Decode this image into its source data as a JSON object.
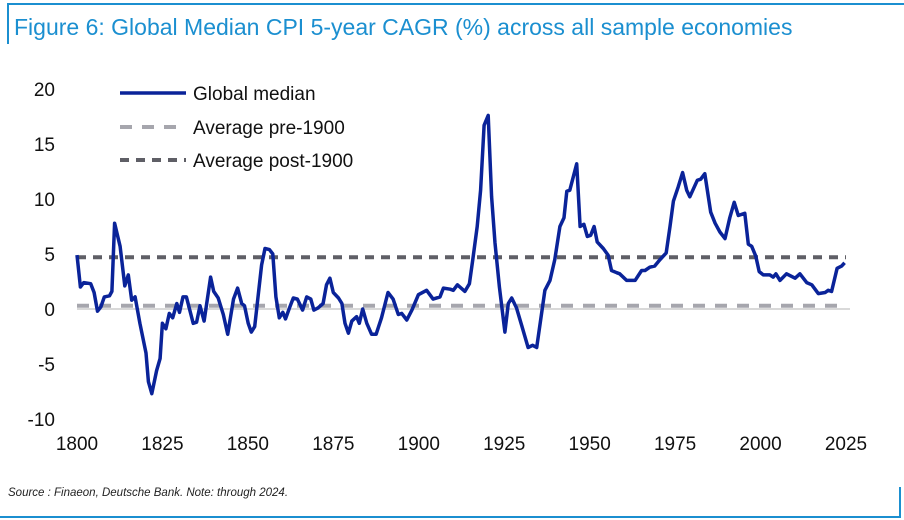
{
  "title": "Figure 6: Global Median CPI 5-year CAGR (%) across all sample economies",
  "source": "Source : Finaeon, Deutsche Bank. Note: through 2024.",
  "colors": {
    "frame": "#1b8fd0",
    "median": "#0a2399",
    "pre1900": "#a6a6ad",
    "post1900": "#5f5f66",
    "zero": "#d9d9d9"
  },
  "chart_data": {
    "type": "line",
    "title": "Figure 6: Global Median CPI 5-year CAGR (%) across all sample economies",
    "xlabel": "",
    "ylabel": "",
    "xlim": [
      1800,
      2025
    ],
    "ylim": [
      -10,
      20
    ],
    "xticks": [
      1800,
      1825,
      1850,
      1875,
      1900,
      1925,
      1950,
      1975,
      2000,
      2025
    ],
    "yticks": [
      20,
      15,
      10,
      5,
      0,
      -5,
      -10
    ],
    "legend_position": "top-left",
    "series": [
      {
        "name": "Global median",
        "style": "solid",
        "x": [
          1800,
          1801,
          1802,
          1804,
          1805,
          1806,
          1807,
          1808,
          1809.5,
          1810.2,
          1811,
          1812.6,
          1814,
          1815,
          1816,
          1817,
          1818.4,
          1820.2,
          1820.9,
          1821.9,
          1823.3,
          1824.3,
          1825,
          1826,
          1827,
          1828,
          1829.2,
          1830,
          1831,
          1832,
          1834,
          1835,
          1836,
          1837.2,
          1839.1,
          1840,
          1841.3,
          1842.8,
          1844.1,
          1845.8,
          1847,
          1848.2,
          1849,
          1850.1,
          1851,
          1852,
          1854,
          1855,
          1856.3,
          1857.3,
          1858.2,
          1859.2,
          1860.2,
          1861,
          1862.3,
          1863.3,
          1864.5,
          1866,
          1867.2,
          1868.4,
          1869.3,
          1870.5,
          1872,
          1873,
          1874,
          1875,
          1876.5,
          1877.5,
          1878.4,
          1879.4,
          1880.4,
          1881.8,
          1882.6,
          1883.6,
          1884.8,
          1886.2,
          1887.5,
          1889.1,
          1891,
          1892.5,
          1894,
          1895,
          1896.5,
          1898,
          1899.9,
          1902.3,
          1904.2,
          1906.2,
          1907.2,
          1909.2,
          1910.1,
          1911.3,
          1913.5,
          1914.8,
          1915.8,
          1917.1,
          1918.1,
          1919.1,
          1920.3,
          1921.3,
          1922.3,
          1923.6,
          1925.2,
          1926.2,
          1927.2,
          1928.6,
          1930.1,
          1932,
          1933.3,
          1934.5,
          1936.9,
          1938.4,
          1939.8,
          1941.3,
          1942.5,
          1943.3,
          1944.2,
          1946.2,
          1947.2,
          1948.3,
          1949.3,
          1950.3,
          1951.3,
          1952.2,
          1954,
          1955.4,
          1956.4,
          1957.9,
          1958.8,
          1960.8,
          1963.3,
          1965.2,
          1966.2,
          1967.6,
          1969,
          1970.6,
          1972.4,
          1973.5,
          1974.5,
          1975.9,
          1977.2,
          1978.4,
          1979.3,
          1981.5,
          1982.5,
          1983.7,
          1985.4,
          1986.7,
          1988.1,
          1989.6,
          1991,
          1992.3,
          1993.5,
          1995.4,
          1996.4,
          1997.4,
          1998.6,
          1999.6,
          2000.8,
          2002.7,
          2003.7,
          2004.5,
          2005.7,
          2007.6,
          2010.1,
          2011.5,
          2013.5,
          2015,
          2016.9,
          2018.9,
          2019.8,
          2020.8,
          2022.4,
          2023.7,
          2024.6
        ],
        "y": [
          4.9,
          2.0,
          2.4,
          2.3,
          1.5,
          -0.2,
          0.2,
          1.1,
          1.2,
          1.6,
          7.8,
          5.7,
          2.1,
          3.1,
          0.8,
          1.1,
          -1.3,
          -4.0,
          -6.6,
          -7.7,
          -5.6,
          -4.5,
          -1.3,
          -1.8,
          -0.4,
          -0.8,
          0.5,
          -0.3,
          1.1,
          1.1,
          -1.3,
          -1.2,
          0.3,
          -1.1,
          2.9,
          1.6,
          1.0,
          -0.5,
          -2.3,
          0.9,
          1.9,
          0.5,
          0.3,
          -1.3,
          -2.1,
          -1.6,
          4.0,
          5.5,
          5.4,
          5.0,
          1.1,
          -0.8,
          -0.3,
          -0.9,
          0.2,
          1.0,
          0.9,
          -0.1,
          1.1,
          0.9,
          -0.1,
          0.1,
          0.5,
          2.2,
          2.8,
          1.5,
          1.0,
          0.5,
          -1.3,
          -2.2,
          -1.1,
          -0.7,
          -1.3,
          0.0,
          -1.3,
          -2.3,
          -2.3,
          -0.8,
          1.5,
          0.9,
          -0.5,
          -0.4,
          -1.0,
          -0.1,
          1.3,
          1.7,
          0.9,
          1.1,
          1.9,
          1.8,
          1.7,
          2.2,
          1.6,
          2.3,
          4.5,
          7.5,
          10.8,
          16.7,
          17.6,
          10.2,
          6.0,
          2.0,
          -2.1,
          0.5,
          1.0,
          0.1,
          -1.5,
          -3.5,
          -3.3,
          -3.5,
          1.7,
          2.6,
          4.5,
          7.5,
          8.3,
          10.7,
          10.8,
          13.2,
          7.5,
          7.7,
          6.6,
          6.7,
          7.5,
          6.1,
          5.5,
          4.9,
          3.5,
          3.3,
          3.2,
          2.6,
          2.6,
          3.5,
          3.5,
          3.8,
          3.9,
          4.5,
          5.1,
          7.5,
          9.8,
          11.1,
          12.4,
          10.8,
          10.2,
          11.7,
          11.8,
          12.3,
          8.8,
          7.8,
          7.0,
          6.4,
          8.3,
          9.7,
          8.5,
          8.7,
          5.9,
          5.7,
          4.8,
          3.4,
          3.1,
          3.1,
          2.9,
          3.2,
          2.6,
          3.2,
          2.8,
          3.2,
          2.4,
          2.2,
          1.4,
          1.5,
          1.7,
          1.6,
          3.7,
          3.9,
          4.2
        ]
      },
      {
        "name": "Average pre-1900",
        "style": "dashed",
        "x": [
          1800,
          2025
        ],
        "y": [
          0.3,
          0.3
        ]
      },
      {
        "name": "Average post-1900",
        "style": "dashed",
        "x": [
          1800,
          2025
        ],
        "y": [
          4.7,
          4.7
        ]
      }
    ]
  }
}
